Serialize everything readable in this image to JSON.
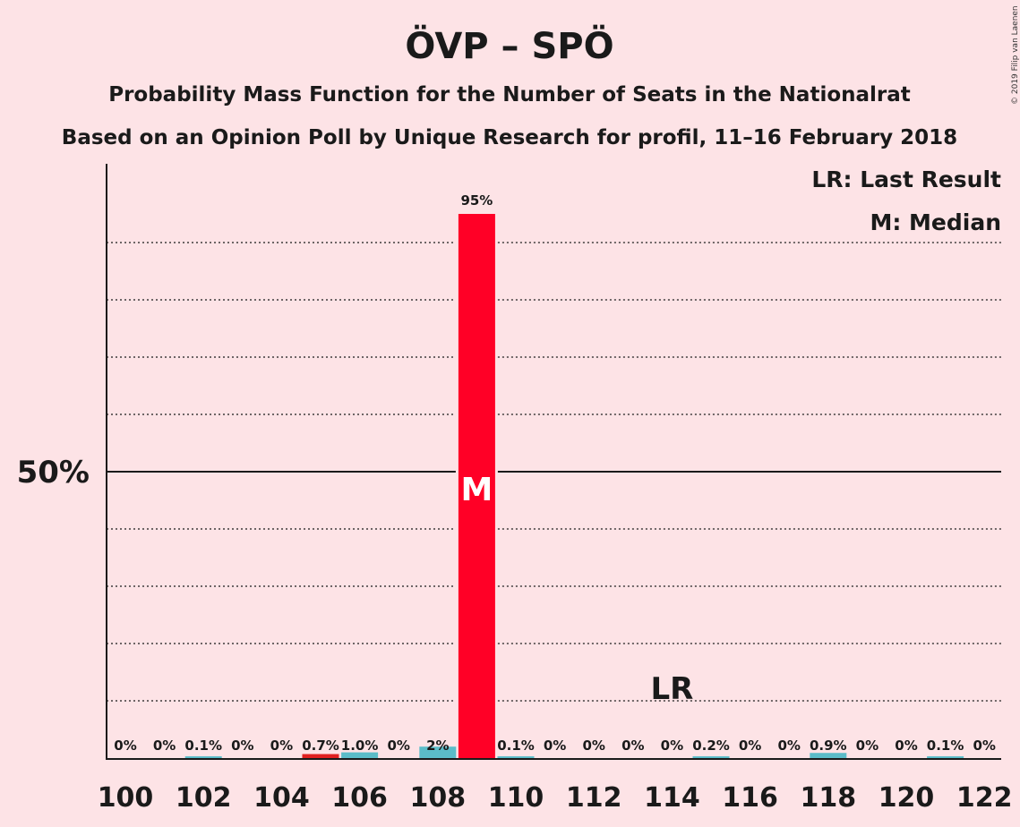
{
  "title": "ÖVP – SPÖ",
  "subtitle1": "Probability Mass Function for the Number of Seats in the Nationalrat",
  "subtitle2": "Based on an Opinion Poll by Unique Research for profil, 11–16 February 2018",
  "copyright": "© 2019 Filip van Laenen",
  "legend": {
    "last_result": "LR: Last Result",
    "median": "M: Median"
  },
  "colors": {
    "background": "#fde3e6",
    "median_bar": "#ff0026",
    "last_result_bar": "#e02020",
    "bar": "#5bbcc8"
  },
  "chart_data": {
    "type": "bar",
    "x": [
      100,
      101,
      102,
      103,
      104,
      105,
      106,
      107,
      108,
      109,
      110,
      111,
      112,
      113,
      114,
      115,
      116,
      117,
      118,
      119,
      120,
      121,
      122
    ],
    "values": [
      0,
      0,
      0.1,
      0,
      0,
      0.7,
      1.0,
      0,
      2,
      95,
      0.1,
      0,
      0,
      0,
      0,
      0.2,
      0,
      0,
      0.9,
      0,
      0,
      0.1,
      0
    ],
    "labels": [
      "0%",
      "0%",
      "0.1%",
      "0%",
      "0%",
      "0.7%",
      "1.0%",
      "0%",
      "2%",
      "95%",
      "0.1%",
      "0%",
      "0%",
      "0%",
      "0%",
      "0.2%",
      "0%",
      "0%",
      "0.9%",
      "0%",
      "0%",
      "0.1%",
      "0%"
    ],
    "xticks": [
      100,
      102,
      104,
      106,
      108,
      110,
      112,
      114,
      116,
      118,
      120,
      122
    ],
    "ytick_label": "50%",
    "ylim": [
      0,
      100
    ],
    "gridlines": [
      10,
      20,
      30,
      40,
      60,
      70,
      80,
      90
    ],
    "median": 109,
    "last_result": 114,
    "median_marker": "M",
    "last_result_marker": "LR"
  }
}
